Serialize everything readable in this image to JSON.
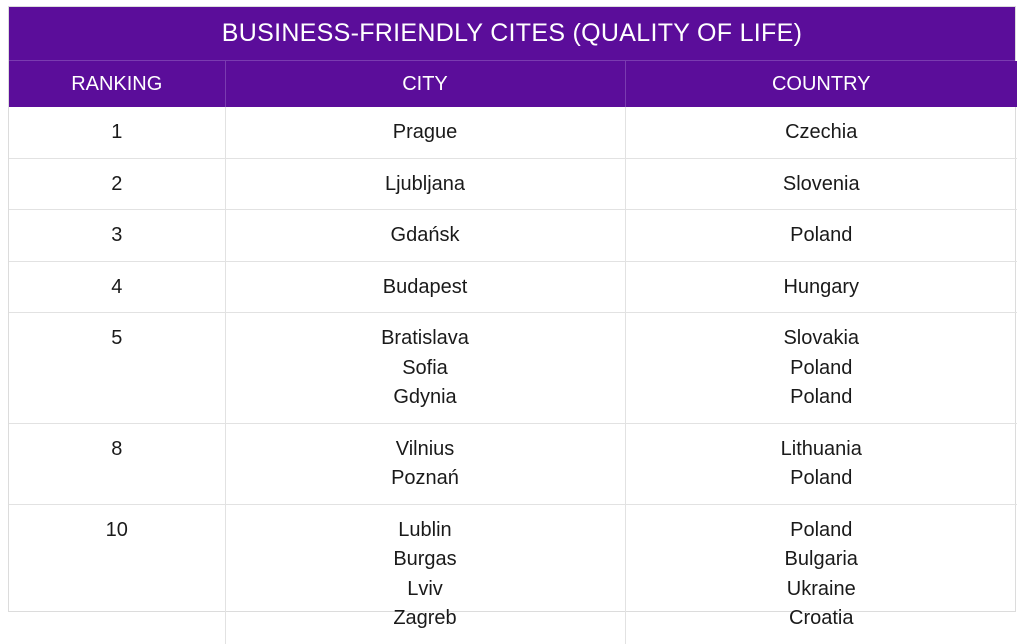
{
  "chart_data": {
    "type": "table",
    "title": "BUSINESS-FRIENDLY CITES (QUALITY OF LIFE)",
    "columns": [
      "RANKING",
      "CITY",
      "COUNTRY"
    ],
    "rows": [
      {
        "ranking": "1",
        "cities": [
          "Prague"
        ],
        "countries": [
          "Czechia"
        ]
      },
      {
        "ranking": "2",
        "cities": [
          "Ljubljana"
        ],
        "countries": [
          "Slovenia"
        ]
      },
      {
        "ranking": "3",
        "cities": [
          "Gdańsk"
        ],
        "countries": [
          "Poland"
        ]
      },
      {
        "ranking": "4",
        "cities": [
          "Budapest"
        ],
        "countries": [
          "Hungary"
        ]
      },
      {
        "ranking": "5",
        "cities": [
          "Bratislava",
          "Sofia",
          "Gdynia"
        ],
        "countries": [
          "Slovakia",
          "Poland",
          "Poland"
        ]
      },
      {
        "ranking": "8",
        "cities": [
          "Vilnius",
          "Poznań"
        ],
        "countries": [
          "Lithuania",
          "Poland"
        ]
      },
      {
        "ranking": "10",
        "cities": [
          "Lublin",
          "Burgas",
          "Lviv",
          "Zagreb"
        ],
        "countries": [
          "Poland",
          "Bulgaria",
          "Ukraine",
          "Croatia"
        ]
      }
    ]
  },
  "colors": {
    "header_bg": "#5b0d9a",
    "header_text": "#ffffff",
    "grid": "#e2e2e2"
  }
}
